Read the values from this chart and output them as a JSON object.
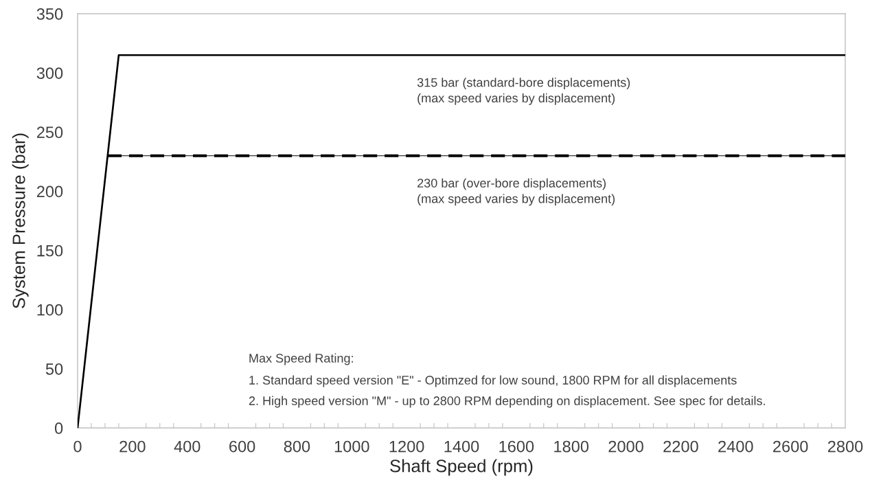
{
  "chart_data": {
    "type": "line",
    "xlabel": "Shaft Speed (rpm)",
    "ylabel": "System Pressure (bar)",
    "series": [
      {
        "x": [
          0,
          150,
          2800
        ],
        "values": [
          0,
          315,
          315
        ],
        "color": "#000000",
        "line_style": "solid"
      },
      {
        "x": [
          110,
          2800
        ],
        "values": [
          230,
          230
        ],
        "color": "#000000",
        "line_style": "solid"
      },
      {
        "x": [
          110,
          2800
        ],
        "values": [
          230,
          230
        ],
        "color": "#000000",
        "line_style": "dashed"
      }
    ],
    "xlim": [
      0,
      2800
    ],
    "ylim": [
      0,
      350
    ],
    "xticks": [
      0,
      {
        "value": 50,
        "label": null
      },
      {
        "value": 100,
        "label": null
      },
      {
        "value": 150,
        "label": null
      },
      200,
      {
        "value": 250,
        "label": null
      },
      {
        "value": 300,
        "label": null
      },
      {
        "value": 350,
        "label": null
      },
      400,
      {
        "value": 450,
        "label": null
      },
      {
        "value": 500,
        "label": null
      },
      {
        "value": 550,
        "label": null
      },
      600,
      {
        "value": 650,
        "label": null
      },
      {
        "value": 700,
        "label": null
      },
      {
        "value": 750,
        "label": null
      },
      800,
      {
        "value": 850,
        "label": null
      },
      {
        "value": 900,
        "label": null
      },
      {
        "value": 950,
        "label": null
      },
      1000,
      {
        "value": 1050,
        "label": null
      },
      {
        "value": 1100,
        "label": null
      },
      {
        "value": 1150,
        "label": null
      },
      1200,
      {
        "value": 1250,
        "label": null
      },
      {
        "value": 1300,
        "label": null
      },
      {
        "value": 1350,
        "label": null
      },
      1400,
      {
        "value": 1450,
        "label": null
      },
      {
        "value": 1500,
        "label": null
      },
      {
        "value": 1550,
        "label": null
      },
      1600,
      {
        "value": 1650,
        "label": null
      },
      {
        "value": 1700,
        "label": null
      },
      {
        "value": 1750,
        "label": null
      },
      1800,
      {
        "value": 1850,
        "label": null
      },
      {
        "value": 1900,
        "label": null
      },
      {
        "value": 1950,
        "label": null
      },
      2000,
      {
        "value": 2050,
        "label": null
      },
      {
        "value": 2100,
        "label": null
      },
      {
        "value": 2150,
        "label": null
      },
      2200,
      {
        "value": 2250,
        "label": null
      },
      {
        "value": 2300,
        "label": null
      },
      {
        "value": 2350,
        "label": null
      },
      2400,
      {
        "value": 2450,
        "label": null
      },
      {
        "value": 2500,
        "label": null
      },
      {
        "value": 2550,
        "label": null
      },
      2600,
      {
        "value": 2650,
        "label": null
      },
      {
        "value": 2700,
        "label": null
      },
      {
        "value": 2750,
        "label": null
      },
      2800
    ],
    "yticks": [
      0,
      50,
      100,
      150,
      200,
      250,
      300,
      350
    ],
    "annotations": [
      "315 bar (standard-bore displacements)\n(max speed varies by displacement)",
      "230 bar (over-bore displacements)\n(max speed varies by displacement)",
      "Max Speed Rating:",
      "1. Standard speed version \"E\" - Optimzed for low sound, 1800 RPM for all displacements",
      "2. High speed version \"M\" - up to 2800 RPM depending on displacement. See spec for details."
    ],
    "grid": false,
    "marker": "none"
  }
}
